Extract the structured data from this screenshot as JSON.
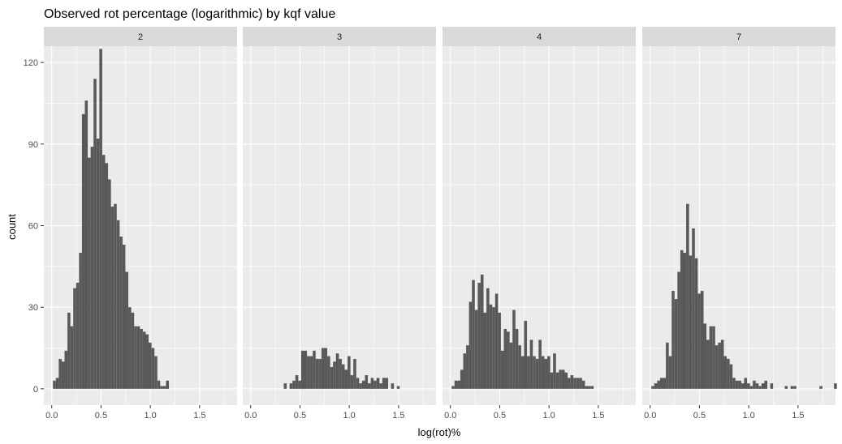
{
  "chart_data": {
    "type": "histogram",
    "title": "Observed rot percentage (logarithmic) by kqf value",
    "xlabel": "log(rot)%",
    "ylabel": "count",
    "facet_var": "kqf",
    "xlim": [
      -0.08,
      1.88
    ],
    "ylim": [
      -6,
      126
    ],
    "x_ticks": [
      0.0,
      0.5,
      1.0,
      1.5
    ],
    "x_tick_labels": [
      "0.0",
      "0.5",
      "1.0",
      "1.5"
    ],
    "y_ticks": [
      0,
      30,
      60,
      90,
      120
    ],
    "y_tick_labels": [
      "0",
      "30",
      "60",
      "90",
      "120"
    ],
    "grid": true,
    "bar_color": "#595959",
    "panel_bg": "#ebebeb",
    "strip_bg": "#d9d9d9",
    "bin_width": 0.0294,
    "bins_start": 0.0125,
    "panels": [
      {
        "label": "2",
        "counts": [
          3,
          4,
          11,
          10,
          14,
          28,
          23,
          37,
          39,
          50,
          101,
          106,
          85,
          89,
          114,
          92,
          125,
          86,
          83,
          77,
          67,
          68,
          62,
          56,
          53,
          43,
          30,
          28,
          23,
          23,
          22,
          21,
          20,
          17,
          15,
          12,
          3,
          1,
          1,
          3
        ]
      },
      {
        "label": "3",
        "counts": [
          0,
          0,
          0,
          0,
          0,
          0,
          0,
          0,
          0,
          0,
          0,
          2,
          0,
          2,
          3,
          5,
          3,
          14,
          14,
          12,
          12,
          14,
          11,
          11,
          15,
          15,
          12,
          8,
          10,
          13,
          11,
          9,
          7,
          12,
          5,
          11,
          4,
          2,
          3,
          5,
          2,
          4,
          3,
          4,
          2,
          4,
          4,
          0,
          2,
          0,
          1
        ]
      },
      {
        "label": "4",
        "counts": [
          1,
          3,
          3,
          7,
          13,
          16,
          32,
          40,
          29,
          39,
          42,
          28,
          37,
          31,
          30,
          35,
          28,
          14,
          22,
          21,
          17,
          29,
          22,
          16,
          12,
          25,
          12,
          18,
          12,
          11,
          18,
          12,
          11,
          12,
          6,
          13,
          6,
          7,
          7,
          6,
          4,
          5,
          4,
          4,
          4,
          3,
          1,
          1,
          1
        ]
      },
      {
        "label": "7",
        "counts": [
          1,
          2,
          3,
          4,
          4,
          17,
          12,
          36,
          33,
          43,
          51,
          50,
          68,
          49,
          59,
          48,
          35,
          36,
          24,
          18,
          23,
          23,
          16,
          17,
          18,
          12,
          11,
          9,
          4,
          3,
          3,
          2,
          4,
          2,
          1,
          3,
          2,
          1,
          2,
          3,
          0,
          2,
          0,
          0,
          0,
          0,
          1,
          0,
          1,
          1,
          0,
          0,
          0,
          0,
          0,
          0,
          0,
          0,
          1,
          0,
          0,
          0,
          0,
          2,
          0,
          0,
          0,
          0,
          0,
          0,
          1,
          0,
          0,
          0,
          0,
          0,
          0,
          0,
          0,
          0,
          0,
          0,
          0,
          0,
          0,
          0,
          0,
          0,
          0,
          0,
          0,
          0,
          0,
          0,
          0,
          0
        ]
      }
    ]
  }
}
